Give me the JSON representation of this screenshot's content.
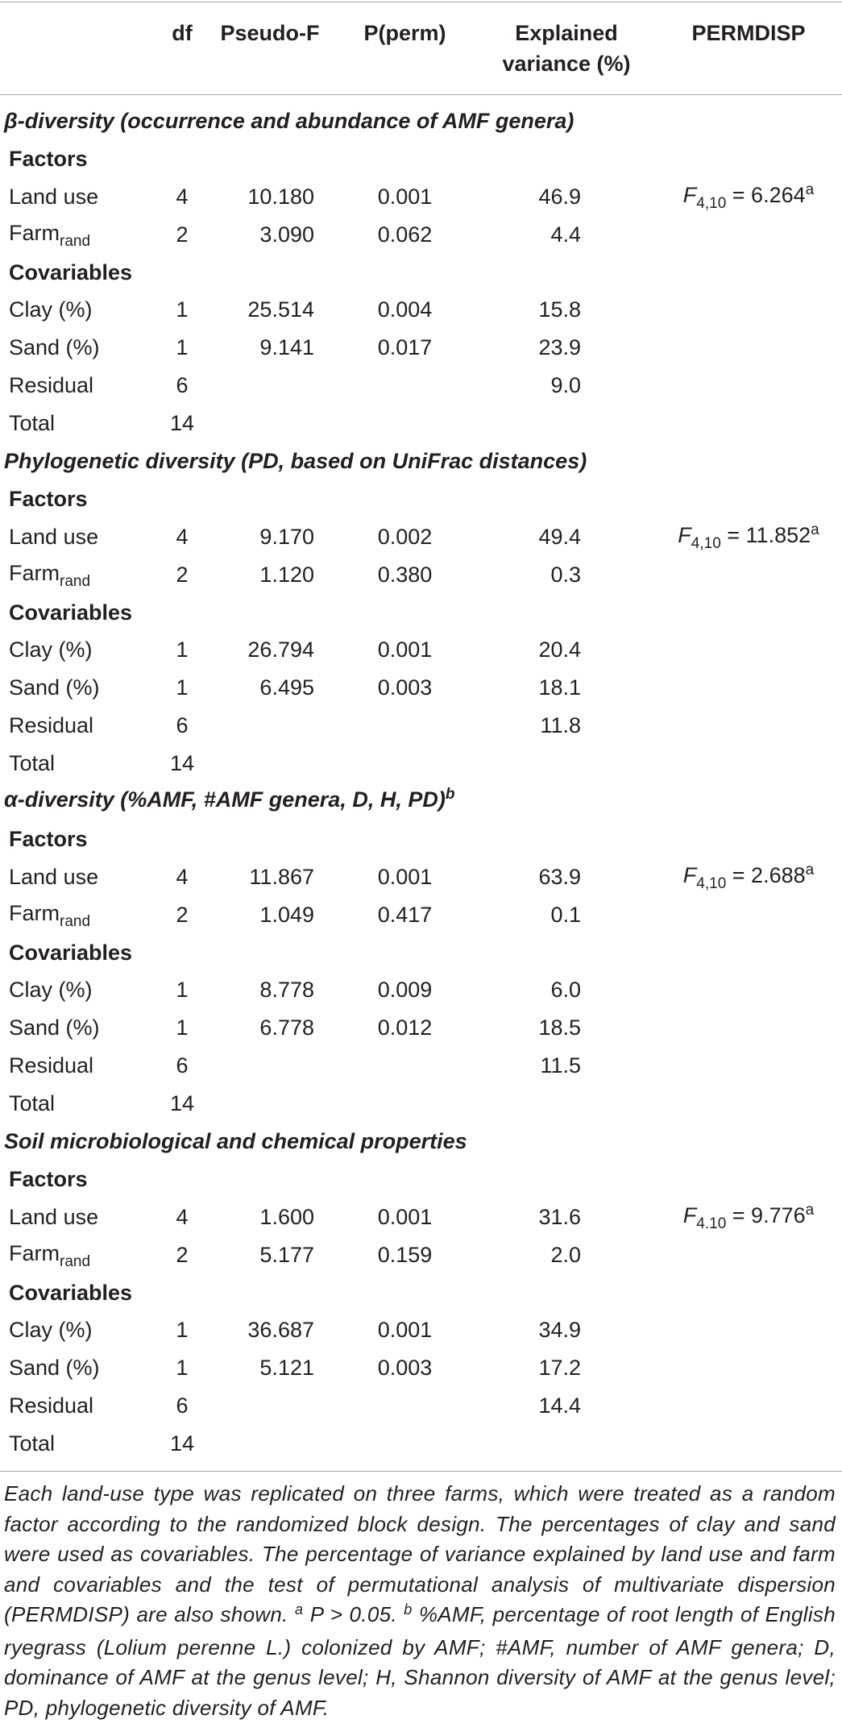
{
  "header": {
    "df": "df",
    "pseudo_f": "Pseudo-F",
    "p_perm": "P(perm)",
    "explained": [
      "Explained",
      "variance (%)"
    ],
    "permdisp": "PERMDISP"
  },
  "labels": {
    "factors": "Factors",
    "covariables": "Covariables",
    "land_use": "Land use",
    "farm": "Farm",
    "farm_sub": "rand",
    "clay": "Clay (%)",
    "sand": "Sand (%)",
    "residual": "Residual",
    "total": "Total"
  },
  "sections": [
    {
      "title": "β-diversity (occurrence and abundance of AMF genera)",
      "land_use": {
        "df": "4",
        "pseudo_f": "10.180",
        "p_perm": "0.001",
        "explained": "46.9",
        "permdisp": {
          "symbol": "F",
          "df": "4,10",
          "value": " = 6.264",
          "mark": "a"
        }
      },
      "farm": {
        "df": "2",
        "pseudo_f": "3.090",
        "p_perm": "0.062",
        "explained": "4.4"
      },
      "clay": {
        "df": "1",
        "pseudo_f": "25.514",
        "p_perm": "0.004",
        "explained": "15.8"
      },
      "sand": {
        "df": "1",
        "pseudo_f": "9.141",
        "p_perm": "0.017",
        "explained": "23.9"
      },
      "residual": {
        "df": "6",
        "explained": "9.0"
      },
      "total": {
        "df": "14"
      }
    },
    {
      "title": "Phylogenetic diversity (PD, based on UniFrac distances)",
      "land_use": {
        "df": "4",
        "pseudo_f": "9.170",
        "p_perm": "0.002",
        "explained": "49.4",
        "permdisp": {
          "symbol": "F",
          "df": "4,10",
          "value": " = 11.852",
          "mark": "a"
        }
      },
      "farm": {
        "df": "2",
        "pseudo_f": "1.120",
        "p_perm": "0.380",
        "explained": "0.3"
      },
      "clay": {
        "df": "1",
        "pseudo_f": "26.794",
        "p_perm": "0.001",
        "explained": "20.4"
      },
      "sand": {
        "df": "1",
        "pseudo_f": "6.495",
        "p_perm": "0.003",
        "explained": "18.1"
      },
      "residual": {
        "df": "6",
        "explained": "11.8"
      },
      "total": {
        "df": "14"
      }
    },
    {
      "title": "α-diversity (%AMF, #AMF genera, D, H, PD)",
      "title_sup": "b",
      "land_use": {
        "df": "4",
        "pseudo_f": "11.867",
        "p_perm": "0.001",
        "explained": "63.9",
        "permdisp": {
          "symbol": "F",
          "df": "4,10",
          "value": " = 2.688",
          "mark": "a"
        }
      },
      "farm": {
        "df": "2",
        "pseudo_f": "1.049",
        "p_perm": "0.417",
        "explained": "0.1"
      },
      "clay": {
        "df": "1",
        "pseudo_f": "8.778",
        "p_perm": "0.009",
        "explained": "6.0"
      },
      "sand": {
        "df": "1",
        "pseudo_f": "6.778",
        "p_perm": "0.012",
        "explained": "18.5"
      },
      "residual": {
        "df": "6",
        "explained": "11.5"
      },
      "total": {
        "df": "14"
      }
    },
    {
      "title": "Soil microbiological and chemical properties",
      "land_use": {
        "df": "4",
        "pseudo_f": "1.600",
        "p_perm": "0.001",
        "explained": "31.6",
        "permdisp": {
          "symbol": "F",
          "df": "4.10",
          "value": " = 9.776",
          "mark": "a"
        }
      },
      "farm": {
        "df": "2",
        "pseudo_f": "5.177",
        "p_perm": "0.159",
        "explained": "2.0"
      },
      "clay": {
        "df": "1",
        "pseudo_f": "36.687",
        "p_perm": "0.001",
        "explained": "34.9"
      },
      "sand": {
        "df": "1",
        "pseudo_f": "5.121",
        "p_perm": "0.003",
        "explained": "17.2"
      },
      "residual": {
        "df": "6",
        "explained": "14.4"
      },
      "total": {
        "df": "14"
      }
    }
  ],
  "footnote": {
    "text_1": "Each land-use type was replicated on three farms, which were treated as a random factor according to the randomized block design. The percentages of clay and sand were used as covariables. The percentage of variance explained by land use and farm and covariables and the test of permutational analysis of multivariate disper­sion (PERMDISP) are also shown. ",
    "mark_a": "a",
    "text_2": " P > 0.05. ",
    "mark_b": "b",
    "text_3": " %AMF, percentage of root length of English ryegrass (Lolium perenne L.) colonized by AMF; #AMF, number of AMF genera; D, dominance of AMF at the genus level; H, Shannon diversity of AMF at the genus level; PD, phylogenetic diversity of AMF."
  }
}
